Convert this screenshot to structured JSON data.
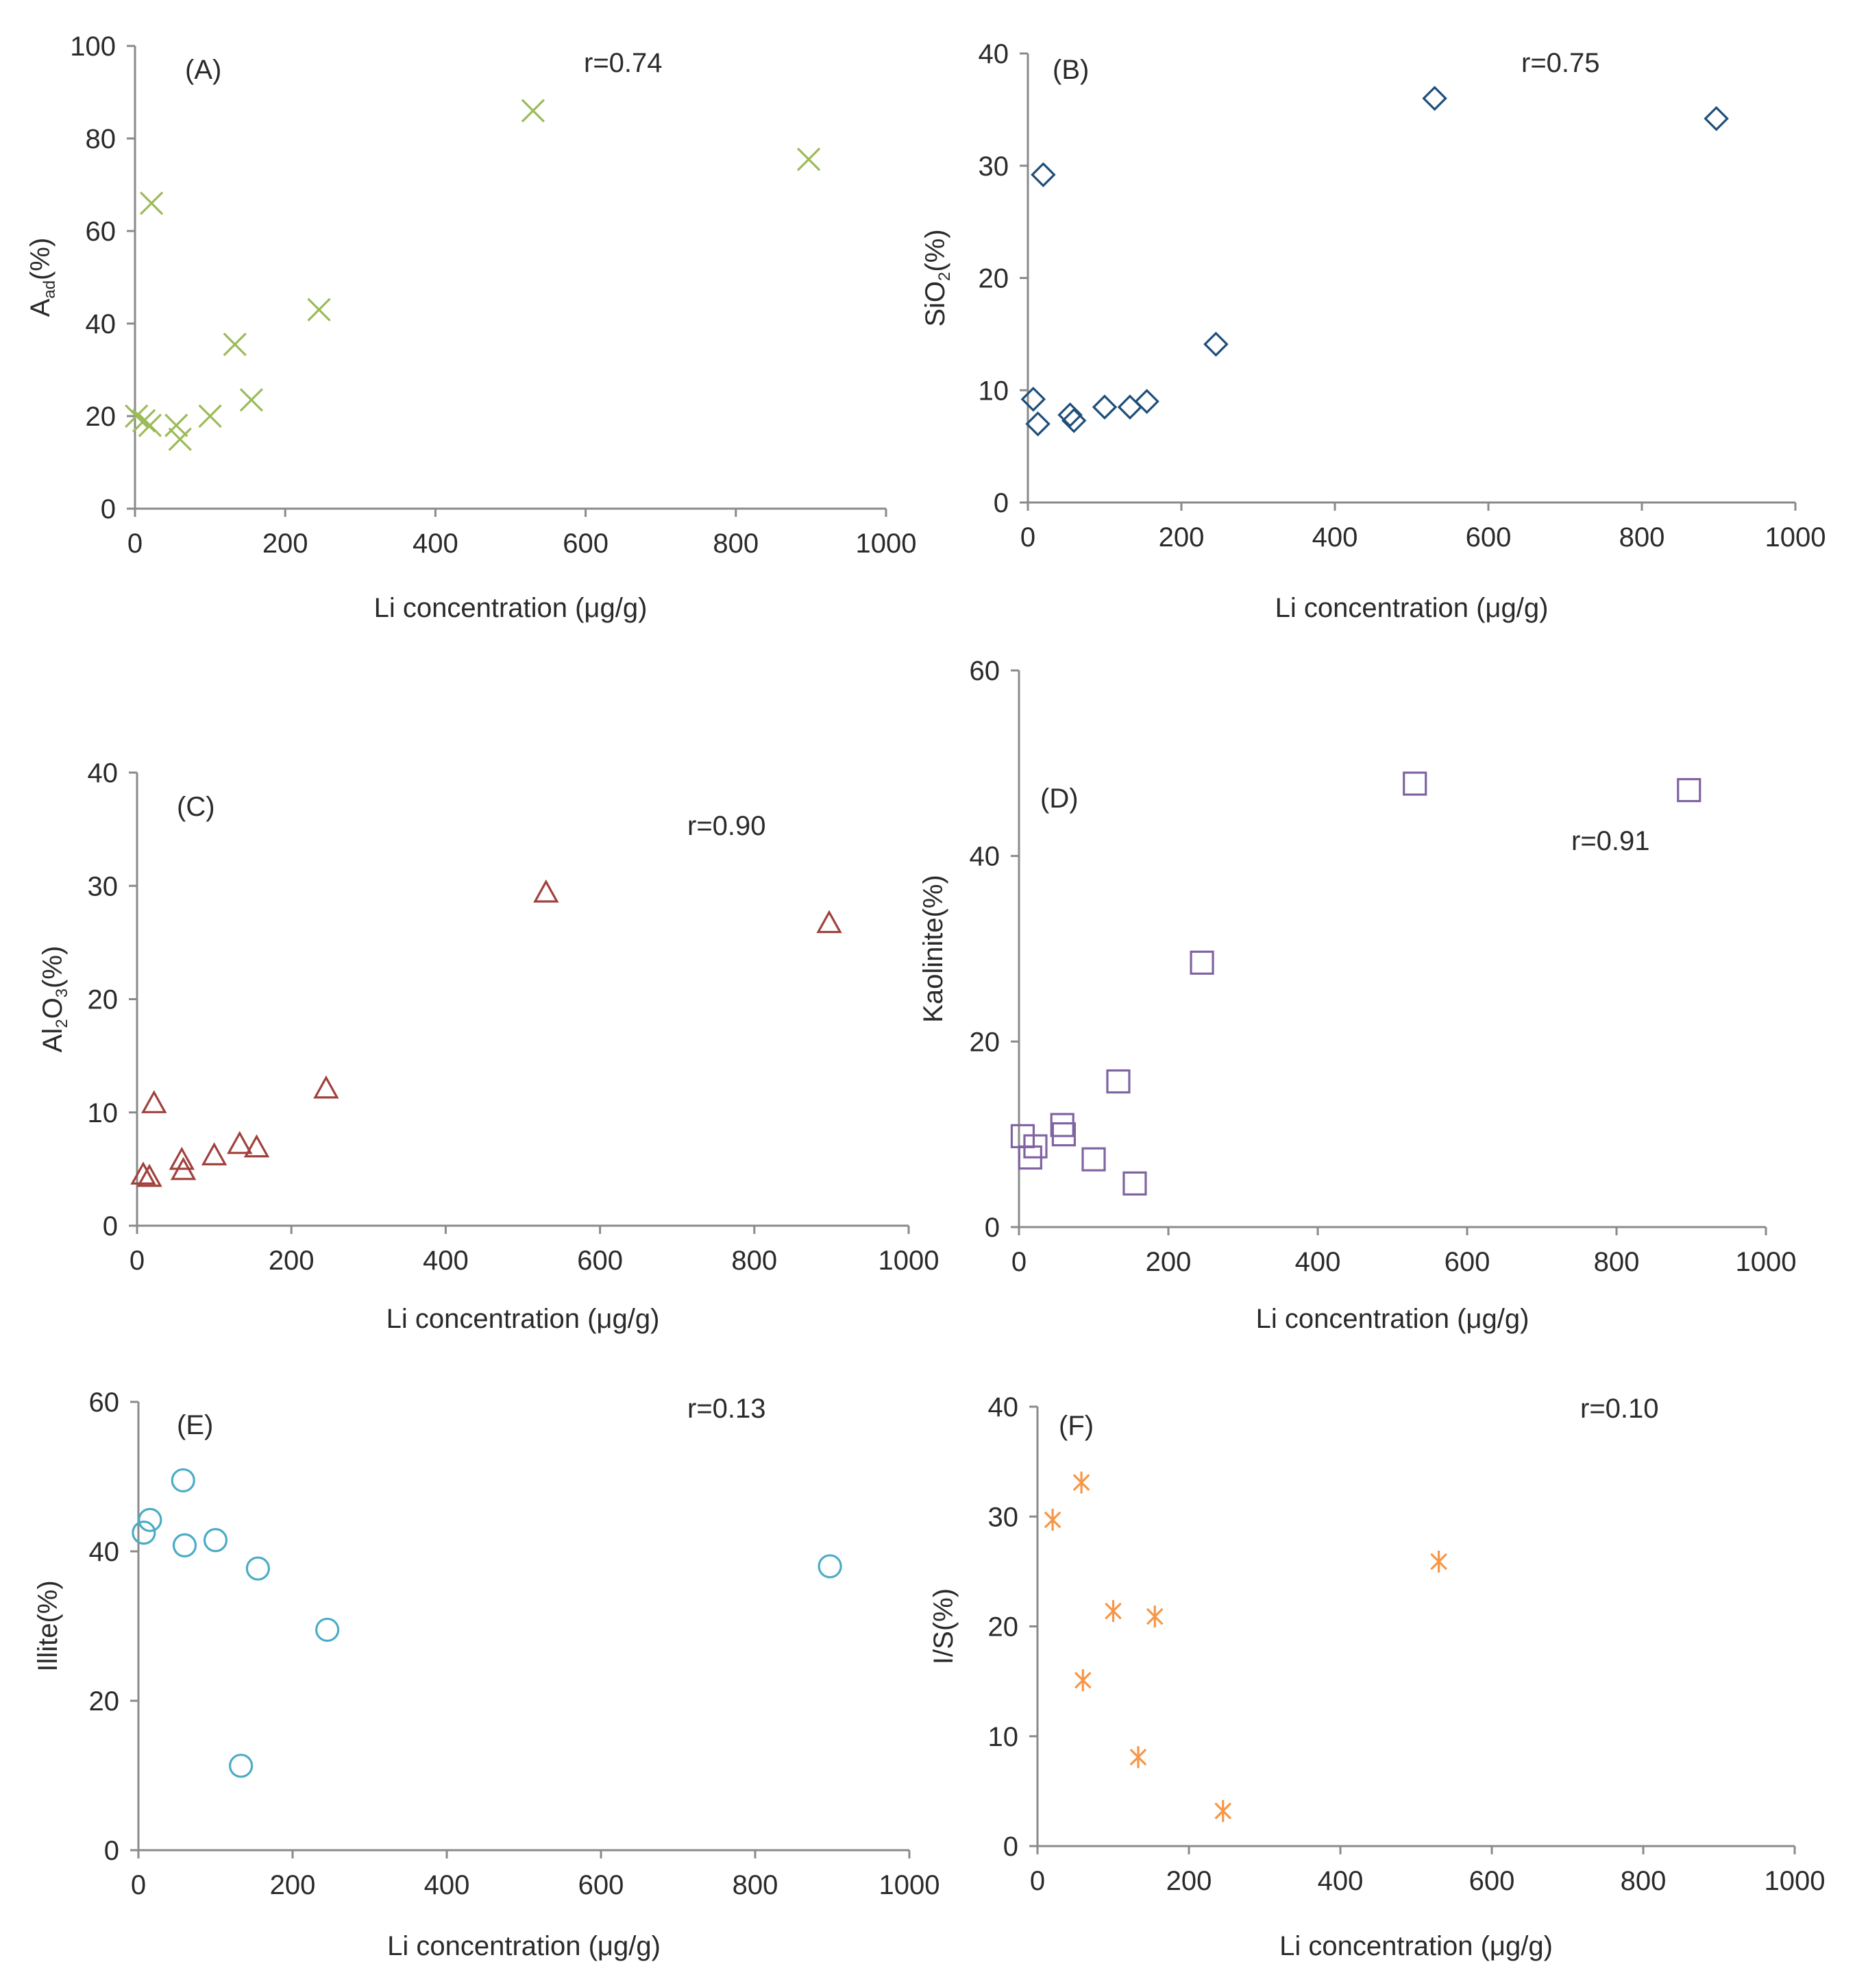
{
  "chart_data": [
    {
      "type": "scatter",
      "panel": "(A)",
      "r_label": "r=0.74",
      "xlabel": "Li concentration (μg/g)",
      "ylabel_main": "A",
      "ylabel_sub": "ad",
      "ylabel_tail": "(%)",
      "xlim": [
        0,
        1000
      ],
      "ylim": [
        0,
        100
      ],
      "xticks": [
        "0",
        "200",
        "400",
        "600",
        "800",
        "1000"
      ],
      "yticks": [
        "0",
        "20",
        "40",
        "60",
        "80",
        "100"
      ],
      "marker": "x",
      "color": "#9bbb59",
      "points": [
        [
          2,
          20
        ],
        [
          12,
          19
        ],
        [
          20,
          18
        ],
        [
          22,
          66
        ],
        [
          55,
          18
        ],
        [
          60,
          15
        ],
        [
          100,
          20
        ],
        [
          133,
          35.5
        ],
        [
          155,
          23.5
        ],
        [
          245,
          43
        ],
        [
          530,
          86
        ],
        [
          897,
          75.5
        ]
      ]
    },
    {
      "type": "scatter",
      "panel": "(B)",
      "r_label": "r=0.75",
      "xlabel": "Li concentration (μg/g)",
      "ylabel_main": "SiO",
      "ylabel_sub": "2",
      "ylabel_tail": "(%)",
      "xlim": [
        0,
        1000
      ],
      "ylim": [
        0,
        40
      ],
      "xticks": [
        "0",
        "200",
        "400",
        "600",
        "800",
        "1000"
      ],
      "yticks": [
        "0",
        "10",
        "20",
        "30",
        "40"
      ],
      "marker": "diamond",
      "color": "#1f4e79",
      "points": [
        [
          7,
          9.2
        ],
        [
          13,
          7
        ],
        [
          20,
          29.2
        ],
        [
          55,
          7.8
        ],
        [
          60,
          7.3
        ],
        [
          100,
          8.5
        ],
        [
          133,
          8.5
        ],
        [
          155,
          9
        ],
        [
          245,
          14.1
        ],
        [
          530,
          36
        ],
        [
          897,
          34.2
        ]
      ]
    },
    {
      "type": "scatter",
      "panel": "(C)",
      "r_label": "r=0.90",
      "xlabel": "Li concentration (μg/g)",
      "ylabel_main": "Al",
      "ylabel_sub": "2",
      "ylabel_mid": "O",
      "ylabel_sub2": "3",
      "ylabel_tail": "(%)",
      "xlim": [
        0,
        1000
      ],
      "ylim": [
        0,
        40
      ],
      "xticks": [
        "0",
        "200",
        "400",
        "600",
        "800",
        "1000"
      ],
      "yticks": [
        "0",
        "10",
        "20",
        "30",
        "40"
      ],
      "marker": "triangle",
      "color": "#a0413c",
      "points": [
        [
          8,
          4.5
        ],
        [
          16,
          4.3
        ],
        [
          22,
          10.8
        ],
        [
          58,
          5.8
        ],
        [
          60,
          4.9
        ],
        [
          100,
          6.2
        ],
        [
          133,
          7.2
        ],
        [
          155,
          6.9
        ],
        [
          245,
          12.1
        ],
        [
          530,
          29.4
        ],
        [
          897,
          26.7
        ]
      ]
    },
    {
      "type": "scatter",
      "panel": "(D)",
      "r_label": "r=0.91",
      "xlabel": "Li concentration (μg/g)",
      "ylabel_main": "Kaolinite(%)",
      "xlim": [
        0,
        1000
      ],
      "ylim": [
        0,
        60
      ],
      "xticks": [
        "0",
        "200",
        "400",
        "600",
        "800",
        "1000"
      ],
      "yticks": [
        "0",
        "20",
        "40",
        "60"
      ],
      "marker": "square",
      "color": "#8064a2",
      "points": [
        [
          5,
          9.8
        ],
        [
          15,
          7.5
        ],
        [
          22,
          8.7
        ],
        [
          58,
          11
        ],
        [
          60,
          10
        ],
        [
          100,
          7.3
        ],
        [
          133,
          15.7
        ],
        [
          155,
          4.7
        ],
        [
          245,
          28.5
        ],
        [
          530,
          47.8
        ],
        [
          897,
          47.1
        ]
      ]
    },
    {
      "type": "scatter",
      "panel": "(E)",
      "r_label": "r=0.13",
      "xlabel": "Li concentration (μg/g)",
      "ylabel_main": "Illite(%)",
      "xlim": [
        0,
        1000
      ],
      "ylim": [
        0,
        60
      ],
      "xticks": [
        "0",
        "200",
        "400",
        "600",
        "800",
        "1000"
      ],
      "yticks": [
        "0",
        "20",
        "40",
        "60"
      ],
      "marker": "circle",
      "color": "#4bacc6",
      "points": [
        [
          7,
          42.5
        ],
        [
          15,
          44.2
        ],
        [
          58,
          49.5
        ],
        [
          60,
          40.8
        ],
        [
          100,
          41.5
        ],
        [
          133,
          11.3
        ],
        [
          155,
          37.7
        ],
        [
          245,
          29.5
        ],
        [
          897,
          38
        ]
      ]
    },
    {
      "type": "scatter",
      "panel": "(F)",
      "r_label": "r=0.10",
      "xlabel": "Li concentration (μg/g)",
      "ylabel_main": "I/S(%)",
      "xlim": [
        0,
        1000
      ],
      "ylim": [
        0,
        40
      ],
      "xticks": [
        "0",
        "200",
        "400",
        "600",
        "800",
        "1000"
      ],
      "yticks": [
        "0",
        "10",
        "20",
        "30",
        "40"
      ],
      "marker": "asterisk",
      "color": "#f79646",
      "points": [
        [
          20,
          29.7
        ],
        [
          58,
          33.1
        ],
        [
          60,
          15.1
        ],
        [
          100,
          21.4
        ],
        [
          133,
          8.1
        ],
        [
          155,
          20.9
        ],
        [
          245,
          3.2
        ],
        [
          530,
          25.9
        ]
      ]
    }
  ]
}
